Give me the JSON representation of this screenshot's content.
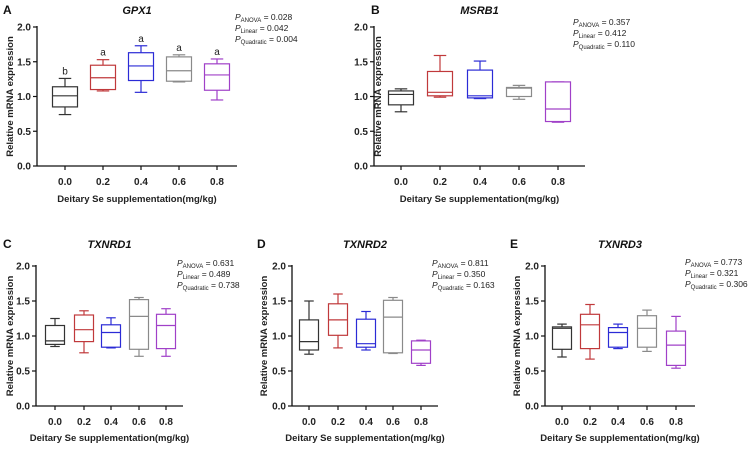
{
  "chart_data": [
    {
      "panel": "A",
      "type": "box",
      "title": "GPX1",
      "xlabel": "Deitary Se supplementation(mg/kg)",
      "ylabel": "Relative mRNA expression",
      "ylim": [
        0,
        2.0
      ],
      "yticks": [
        "0.0",
        "0.5",
        "1.0",
        "1.5",
        "2.0"
      ],
      "categories": [
        "0.0",
        "0.2",
        "0.4",
        "0.6",
        "0.8"
      ],
      "colors": [
        "#333333",
        "#c0393b",
        "#2b2bd6",
        "#8a8a8a",
        "#a040c8"
      ],
      "boxes": [
        {
          "min": 0.74,
          "q1": 0.85,
          "median": 1.01,
          "q3": 1.14,
          "max": 1.26
        },
        {
          "min": 1.08,
          "q1": 1.1,
          "median": 1.27,
          "q3": 1.45,
          "max": 1.53
        },
        {
          "min": 1.06,
          "q1": 1.23,
          "median": 1.44,
          "q3": 1.63,
          "max": 1.73
        },
        {
          "min": 1.21,
          "q1": 1.22,
          "median": 1.37,
          "q3": 1.57,
          "max": 1.6
        },
        {
          "min": 0.95,
          "q1": 1.09,
          "median": 1.31,
          "q3": 1.47,
          "max": 1.54
        }
      ],
      "significance": [
        "b",
        "a",
        "a",
        "a",
        "a"
      ],
      "pvalues": {
        "anova": " = 0.028",
        "linear": " = 0.042",
        "quadratic": " = 0.004"
      }
    },
    {
      "panel": "B",
      "type": "box",
      "title": "MSRB1",
      "xlabel": "Deitary Se supplementation(mg/kg)",
      "ylabel": "Relative mRNA expression",
      "ylim": [
        0,
        2.0
      ],
      "yticks": [
        "0.0",
        "0.5",
        "1.0",
        "1.5",
        "2.0"
      ],
      "categories": [
        "0.0",
        "0.2",
        "0.4",
        "0.6",
        "0.8"
      ],
      "colors": [
        "#333333",
        "#c0393b",
        "#2b2bd6",
        "#8a8a8a",
        "#a040c8"
      ],
      "boxes": [
        {
          "min": 0.78,
          "q1": 0.88,
          "median": 1.03,
          "q3": 1.08,
          "max": 1.11
        },
        {
          "min": 0.99,
          "q1": 1.01,
          "median": 1.06,
          "q3": 1.36,
          "max": 1.59
        },
        {
          "min": 0.97,
          "q1": 0.98,
          "median": 1.01,
          "q3": 1.38,
          "max": 1.51
        },
        {
          "min": 0.96,
          "q1": 1.0,
          "median": 1.12,
          "q3": 1.13,
          "max": 1.16
        },
        {
          "min": 0.63,
          "q1": 0.64,
          "median": 0.82,
          "q3": 1.21,
          "max": 1.21
        }
      ],
      "significance": [],
      "pvalues": {
        "anova": " = 0.357",
        "linear": " = 0.412",
        "quadratic": " = 0.110"
      }
    },
    {
      "panel": "C",
      "type": "box",
      "title": "TXNRD1",
      "xlabel": "Deitary Se supplementation(mg/kg)",
      "ylabel": "Relative mRNA expression",
      "ylim": [
        0,
        2.0
      ],
      "yticks": [
        "0.0",
        "0.5",
        "1.0",
        "1.5",
        "2.0"
      ],
      "categories": [
        "0.0",
        "0.2",
        "0.4",
        "0.6",
        "0.8"
      ],
      "colors": [
        "#333333",
        "#c0393b",
        "#2b2bd6",
        "#8a8a8a",
        "#a040c8"
      ],
      "boxes": [
        {
          "min": 0.85,
          "q1": 0.88,
          "median": 0.93,
          "q3": 1.15,
          "max": 1.25
        },
        {
          "min": 0.76,
          "q1": 0.92,
          "median": 1.09,
          "q3": 1.3,
          "max": 1.36
        },
        {
          "min": 0.83,
          "q1": 0.84,
          "median": 1.05,
          "q3": 1.16,
          "max": 1.26
        },
        {
          "min": 0.71,
          "q1": 0.81,
          "median": 1.28,
          "q3": 1.52,
          "max": 1.55
        },
        {
          "min": 0.71,
          "q1": 0.82,
          "median": 1.15,
          "q3": 1.31,
          "max": 1.39
        }
      ],
      "significance": [],
      "pvalues": {
        "anova": " = 0.631",
        "linear": " = 0.489",
        "quadratic": " = 0.738"
      }
    },
    {
      "panel": "D",
      "type": "box",
      "title": "TXNRD2",
      "xlabel": "Deitary Se supplementation(mg/kg)",
      "ylabel": "Relative mRNA expression",
      "ylim": [
        0,
        2.0
      ],
      "yticks": [
        "0.0",
        "0.5",
        "1.0",
        "1.5",
        "2.0"
      ],
      "categories": [
        "0.0",
        "0.2",
        "0.4",
        "0.6",
        "0.8"
      ],
      "colors": [
        "#333333",
        "#c0393b",
        "#2b2bd6",
        "#8a8a8a",
        "#a040c8"
      ],
      "boxes": [
        {
          "min": 0.74,
          "q1": 0.8,
          "median": 0.92,
          "q3": 1.23,
          "max": 1.5
        },
        {
          "min": 0.83,
          "q1": 1.01,
          "median": 1.23,
          "q3": 1.46,
          "max": 1.6
        },
        {
          "min": 0.8,
          "q1": 0.84,
          "median": 0.89,
          "q3": 1.24,
          "max": 1.35
        },
        {
          "min": 0.75,
          "q1": 0.76,
          "median": 1.27,
          "q3": 1.51,
          "max": 1.55
        },
        {
          "min": 0.58,
          "q1": 0.61,
          "median": 0.8,
          "q3": 0.93,
          "max": 0.94
        }
      ],
      "significance": [],
      "pvalues": {
        "anova": " = 0.811",
        "linear": " = 0.350",
        "quadratic": " = 0.163"
      }
    },
    {
      "panel": "E",
      "type": "box",
      "title": "TXNRD3",
      "xlabel": "Deitary Se supplementation(mg/kg)",
      "ylabel": "Relative mRNA expression",
      "ylim": [
        0,
        2.0
      ],
      "yticks": [
        "0.0",
        "0.5",
        "1.0",
        "1.5",
        "2.0"
      ],
      "categories": [
        "0.0",
        "0.2",
        "0.4",
        "0.6",
        "0.8"
      ],
      "colors": [
        "#333333",
        "#c0393b",
        "#2b2bd6",
        "#8a8a8a",
        "#a040c8"
      ],
      "boxes": [
        {
          "min": 0.7,
          "q1": 0.81,
          "median": 1.11,
          "q3": 1.13,
          "max": 1.17
        },
        {
          "min": 0.67,
          "q1": 0.82,
          "median": 1.16,
          "q3": 1.31,
          "max": 1.45
        },
        {
          "min": 0.82,
          "q1": 0.84,
          "median": 1.05,
          "q3": 1.12,
          "max": 1.17
        },
        {
          "min": 0.78,
          "q1": 0.84,
          "median": 1.11,
          "q3": 1.29,
          "max": 1.37
        },
        {
          "min": 0.54,
          "q1": 0.58,
          "median": 0.87,
          "q3": 1.07,
          "max": 1.28
        }
      ],
      "significance": [],
      "pvalues": {
        "anova": " = 0.773",
        "linear": " = 0.321",
        "quadratic": " = 0.306"
      }
    }
  ],
  "pvalue_labels": {
    "p": "P",
    "anova": "ANOVA",
    "linear": "Linear",
    "quadratic": "Quadratic"
  }
}
